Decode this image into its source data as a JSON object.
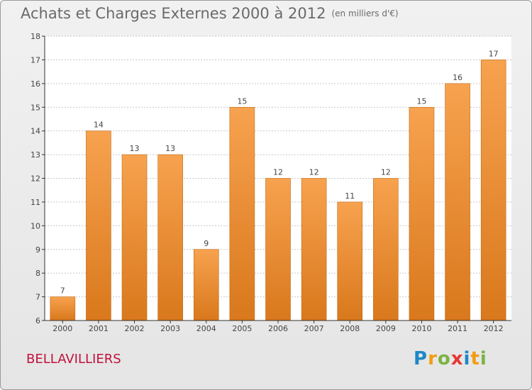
{
  "title": "Achats et Charges Externes 2000 à 2012",
  "unit": "(en milliers d'€)",
  "commune": "BELLAVILLIERS",
  "logo": {
    "letters": [
      {
        "ch": "P",
        "color": "#1e88c7"
      },
      {
        "ch": "r",
        "color": "#f39c12"
      },
      {
        "ch": "o",
        "color": "#7cb342"
      },
      {
        "ch": "x",
        "color": "#e53935"
      },
      {
        "ch": "i",
        "color": "#1e88c7"
      },
      {
        "ch": "t",
        "color": "#f39c12"
      },
      {
        "ch": "i",
        "color": "#7cb342"
      }
    ]
  },
  "colors": {
    "bar_light": "#f7a24f",
    "bar_dark": "#d9781c",
    "axis": "#333333",
    "grid": "#c8c8c8",
    "text": "#444444"
  },
  "chart_data": {
    "type": "bar",
    "title": "Achats et Charges Externes 2000 à 2012",
    "xlabel": "",
    "ylabel": "",
    "categories": [
      "2000",
      "2001",
      "2002",
      "2003",
      "2004",
      "2005",
      "2006",
      "2007",
      "2008",
      "2009",
      "2010",
      "2011",
      "2012"
    ],
    "values": [
      7,
      14,
      13,
      13,
      9,
      15,
      12,
      12,
      11,
      12,
      15,
      16,
      17
    ],
    "ylim": [
      6,
      18
    ],
    "yticks": [
      6,
      7,
      8,
      9,
      10,
      11,
      12,
      13,
      14,
      15,
      16,
      17,
      18
    ],
    "grid": true
  }
}
